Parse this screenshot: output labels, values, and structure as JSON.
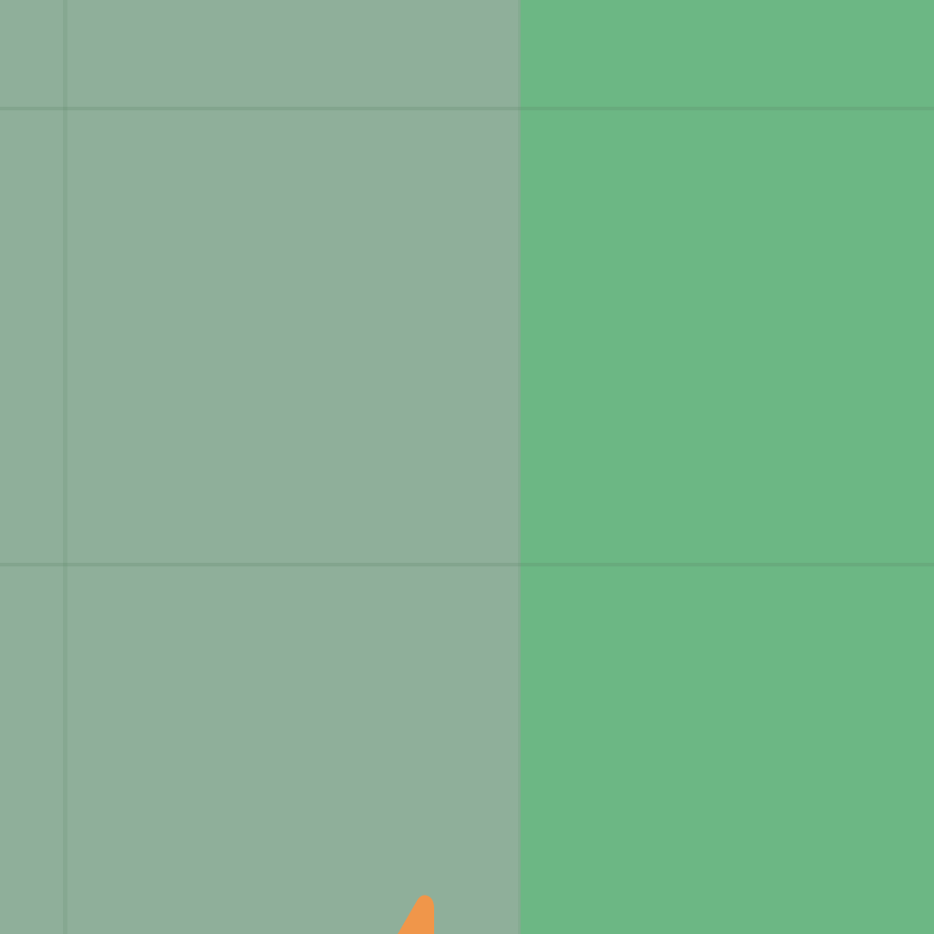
{
  "board": {
    "regions": [
      {
        "name": "left-region",
        "color": "#8faf9a"
      },
      {
        "name": "right-region",
        "color": "#6cb784"
      }
    ],
    "grid_line_color": "#86a891"
  },
  "unit": {
    "icon": "orange-triangle-marker-icon",
    "color": "#f0964a"
  }
}
